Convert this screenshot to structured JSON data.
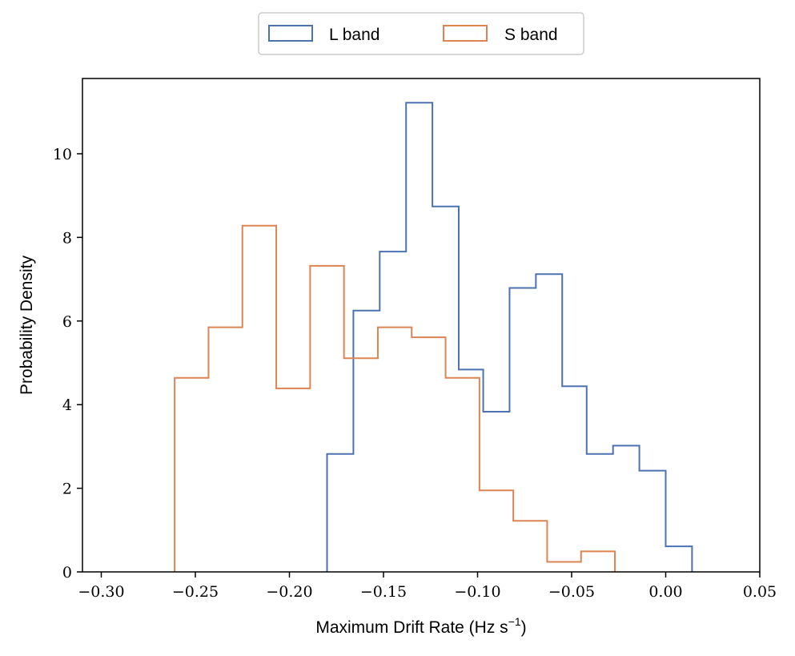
{
  "chart_data": {
    "type": "histogram-step",
    "xlabel_main": "Maximum Drift Rate (Hz s",
    "xlabel_sup": "−1",
    "xlabel_close": ")",
    "ylabel": "Probability Density",
    "xlim": [
      -0.31,
      0.05
    ],
    "ylim": [
      0,
      11.8
    ],
    "xticks": [
      -0.3,
      -0.25,
      -0.2,
      -0.15,
      -0.1,
      -0.05,
      0.0,
      0.05
    ],
    "xtick_labels": [
      "−0.30",
      "−0.25",
      "−0.20",
      "−0.15",
      "−0.10",
      "−0.05",
      "0.00",
      "0.05"
    ],
    "yticks": [
      0,
      2,
      4,
      6,
      8,
      10
    ],
    "ytick_labels": [
      "0",
      "2",
      "4",
      "6",
      "8",
      "10"
    ],
    "legend_position": "top-center outside",
    "grid": false,
    "series": [
      {
        "name": "L band",
        "color": "#4c72b0",
        "edges": [
          -0.18,
          -0.166,
          -0.152,
          -0.138,
          -0.124,
          -0.11,
          -0.097,
          -0.083,
          -0.069,
          -0.055,
          -0.042,
          -0.028,
          -0.014,
          0.0,
          0.014
        ],
        "values": [
          2.82,
          6.25,
          7.66,
          11.22,
          8.74,
          4.84,
          3.83,
          6.79,
          7.12,
          4.44,
          2.82,
          3.02,
          2.42,
          0.61
        ]
      },
      {
        "name": "S band",
        "color": "#dd8452",
        "edges": [
          -0.261,
          -0.243,
          -0.225,
          -0.207,
          -0.189,
          -0.171,
          -0.153,
          -0.135,
          -0.117,
          -0.099,
          -0.081,
          -0.063,
          -0.045,
          -0.027
        ],
        "values": [
          4.64,
          5.85,
          8.28,
          4.39,
          7.32,
          5.11,
          5.85,
          5.61,
          4.64,
          1.95,
          1.22,
          0.24,
          0.49
        ]
      }
    ]
  }
}
